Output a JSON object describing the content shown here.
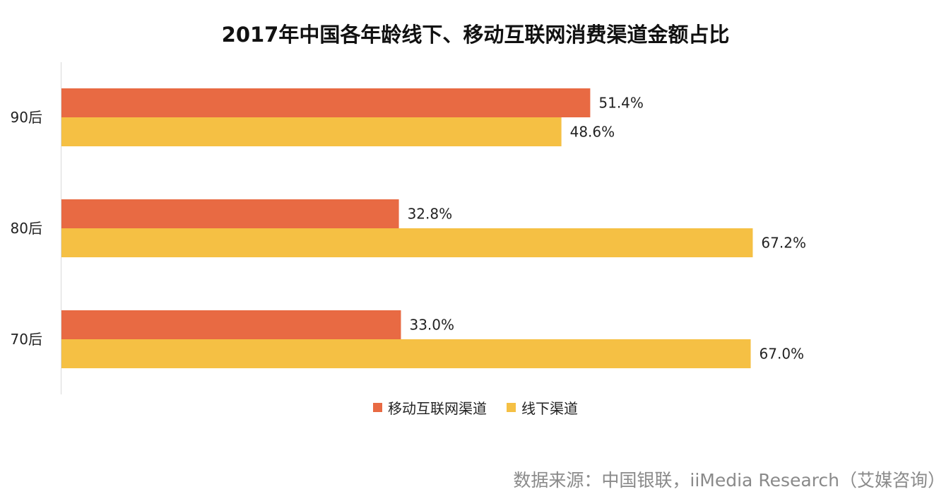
{
  "chart_data": {
    "type": "bar",
    "orientation": "horizontal",
    "title": "2017年中国各年龄线下、移动互联网消费渠道金额占比",
    "categories": [
      "90后",
      "80后",
      "70后"
    ],
    "series": [
      {
        "name": "移动互联网渠道",
        "color": "#E86A43",
        "values": [
          51.4,
          32.8,
          33.0
        ],
        "labels": [
          "51.4%",
          "32.8%",
          "33.0%"
        ]
      },
      {
        "name": "线下渠道",
        "color": "#F5C044",
        "values": [
          48.6,
          67.2,
          67.0
        ],
        "labels": [
          "48.6%",
          "67.2%",
          "67.0%"
        ]
      }
    ],
    "xlim": [
      0,
      75
    ],
    "grid": false,
    "legend": "bottom"
  },
  "source_text": "数据来源：中国银联，iiMedia Research（艾媒咨询）"
}
